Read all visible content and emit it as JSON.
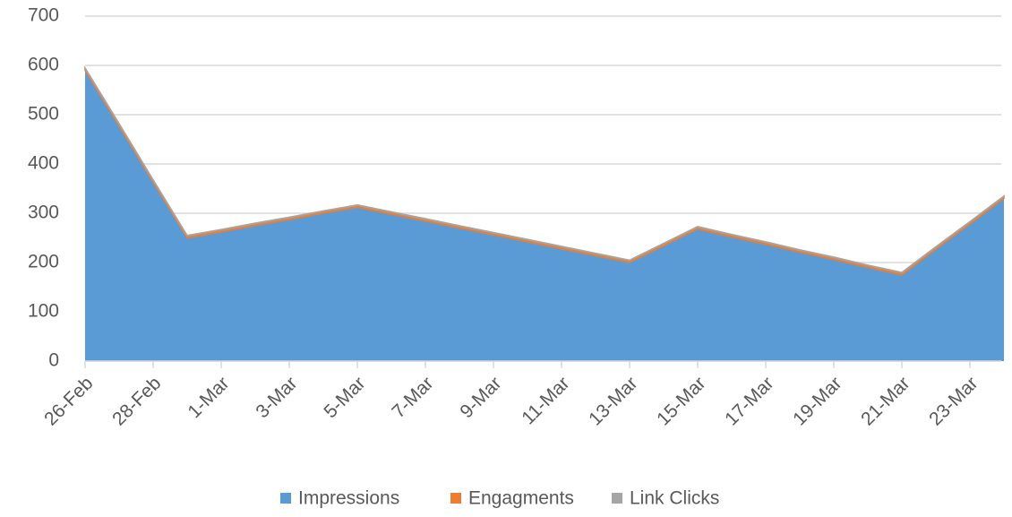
{
  "chart_data": {
    "type": "stacked_area",
    "categories": [
      "26-Feb",
      null,
      "28-Feb",
      null,
      "1-Mar",
      null,
      "3-Mar",
      null,
      "5-Mar",
      null,
      "7-Mar",
      null,
      "9-Mar",
      null,
      "11-Mar",
      null,
      "13-Mar",
      null,
      "15-Mar",
      null,
      "17-Mar",
      null,
      "19-Mar",
      null,
      "21-Mar",
      null,
      "23-Mar",
      null
    ],
    "series": [
      {
        "name": "Impressions",
        "color": "#5b9bd5",
        "values": [
          590,
          477,
          363,
          250,
          262,
          275,
          287,
          300,
          312,
          298,
          284,
          270,
          256,
          242,
          228,
          214,
          200,
          234,
          268,
          252,
          237,
          221,
          206,
          190,
          175,
          227,
          278,
          330
        ]
      },
      {
        "name": "Engagments",
        "color": "#ed7d31",
        "values": [
          4,
          4,
          4,
          4,
          4,
          4,
          4,
          4,
          4,
          4,
          4,
          4,
          4,
          4,
          4,
          4,
          4,
          4,
          4,
          4,
          4,
          4,
          4,
          4,
          4,
          4,
          4,
          4
        ]
      },
      {
        "name": "Link Clicks",
        "color": "#a5a5a5",
        "values": [
          1,
          1,
          1,
          1,
          1,
          1,
          1,
          1,
          1,
          1,
          1,
          1,
          1,
          1,
          1,
          1,
          1,
          1,
          1,
          1,
          1,
          1,
          1,
          1,
          1,
          1,
          1,
          1
        ]
      }
    ],
    "ylim": [
      0,
      700
    ],
    "yticks": [
      0,
      100,
      200,
      300,
      400,
      500,
      600,
      700
    ],
    "grid": true,
    "legend": "bottom"
  }
}
